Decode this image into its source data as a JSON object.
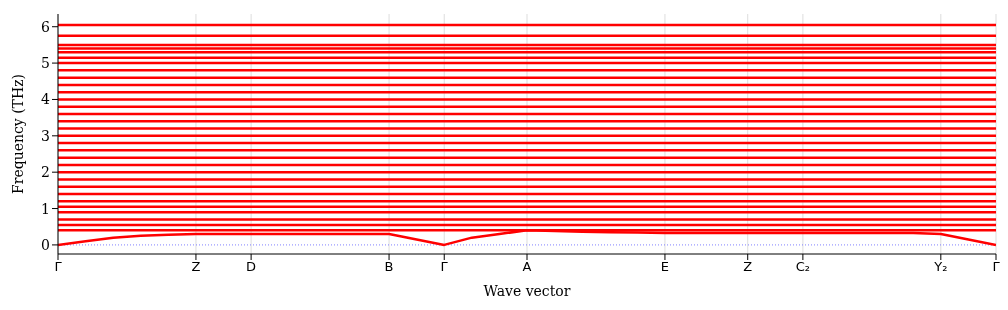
{
  "chart_data": {
    "type": "line",
    "xlabel": "Wave vector",
    "ylabel": "Frequency (THz)",
    "categories": [
      "Γ",
      null,
      null,
      null,
      null,
      "Z",
      null,
      "D",
      null,
      null,
      null,
      null,
      "B",
      null,
      "Γ",
      null,
      null,
      "A",
      null,
      null,
      null,
      null,
      "E",
      null,
      null,
      "Z",
      null,
      "C₂",
      null,
      null,
      null,
      null,
      "Y₂",
      null,
      "Γ"
    ],
    "ylim": [
      -0.25,
      6.35
    ],
    "yticks": [
      0,
      1,
      2,
      3,
      4,
      5,
      6
    ],
    "grid": "x",
    "marker": "none",
    "line_style": "solid",
    "legend": false,
    "ref_lines": [
      {
        "axis": "y",
        "value": 0,
        "color": "#8080ff",
        "line_style": "dotted"
      }
    ],
    "series": [
      {
        "color": "#ff0000",
        "values": [
          0,
          0.1,
          0.2,
          0.25,
          0.28,
          0.3,
          0.3,
          0.3,
          0.3,
          0.3,
          0.3,
          0.3,
          0.3,
          0.15,
          0,
          0.2,
          0.3,
          0.4,
          0.38,
          0.36,
          0.35,
          0.34,
          0.33,
          0.33,
          0.33,
          0.33,
          0.33,
          0.33,
          0.33,
          0.33,
          0.33,
          0.33,
          0.3,
          0.15,
          0
        ]
      },
      {
        "color": "#ff0000",
        "values": [
          0.4,
          0.4,
          0.4,
          0.4,
          0.4,
          0.4,
          0.4,
          0.4,
          0.4,
          0.4,
          0.4,
          0.4,
          0.4,
          0.4,
          0.4,
          0.4,
          0.4,
          0.4,
          0.4,
          0.4,
          0.4,
          0.4,
          0.4,
          0.4,
          0.4,
          0.4,
          0.4,
          0.4,
          0.4,
          0.4,
          0.4,
          0.4,
          0.4,
          0.4,
          0.4
        ]
      },
      {
        "color": "#ff0000",
        "values": [
          0.55,
          0.55,
          0.55,
          0.55,
          0.55,
          0.55,
          0.55,
          0.55,
          0.55,
          0.55,
          0.55,
          0.55,
          0.55,
          0.55,
          0.55,
          0.55,
          0.55,
          0.55,
          0.55,
          0.55,
          0.55,
          0.55,
          0.55,
          0.55,
          0.55,
          0.55,
          0.55,
          0.55,
          0.55,
          0.55,
          0.55,
          0.55,
          0.55,
          0.55,
          0.55
        ]
      },
      {
        "color": "#ff0000",
        "values": [
          0.7,
          0.7,
          0.7,
          0.7,
          0.7,
          0.7,
          0.7,
          0.7,
          0.7,
          0.7,
          0.7,
          0.7,
          0.7,
          0.7,
          0.7,
          0.7,
          0.7,
          0.7,
          0.7,
          0.7,
          0.7,
          0.7,
          0.7,
          0.7,
          0.7,
          0.7,
          0.7,
          0.7,
          0.7,
          0.7,
          0.7,
          0.7,
          0.7,
          0.7,
          0.7
        ]
      },
      {
        "color": "#ff0000",
        "values": [
          0.9,
          0.9,
          0.9,
          0.9,
          0.9,
          0.9,
          0.9,
          0.9,
          0.9,
          0.9,
          0.9,
          0.9,
          0.9,
          0.9,
          0.9,
          0.9,
          0.9,
          0.9,
          0.9,
          0.9,
          0.9,
          0.9,
          0.9,
          0.9,
          0.9,
          0.9,
          0.9,
          0.9,
          0.9,
          0.9,
          0.9,
          0.9,
          0.9,
          0.9,
          0.9
        ]
      },
      {
        "color": "#ff0000",
        "values": [
          1.05,
          1.05,
          1.05,
          1.05,
          1.05,
          1.05,
          1.05,
          1.05,
          1.05,
          1.05,
          1.05,
          1.05,
          1.05,
          1.05,
          1.05,
          1.05,
          1.05,
          1.05,
          1.05,
          1.05,
          1.05,
          1.05,
          1.05,
          1.05,
          1.05,
          1.05,
          1.05,
          1.05,
          1.05,
          1.05,
          1.05,
          1.05,
          1.05,
          1.05,
          1.05
        ]
      },
      {
        "color": "#ff0000",
        "values": [
          1.2,
          1.2,
          1.2,
          1.2,
          1.2,
          1.2,
          1.2,
          1.2,
          1.2,
          1.2,
          1.2,
          1.2,
          1.2,
          1.2,
          1.2,
          1.2,
          1.2,
          1.2,
          1.2,
          1.2,
          1.2,
          1.2,
          1.2,
          1.2,
          1.2,
          1.2,
          1.2,
          1.2,
          1.2,
          1.2,
          1.2,
          1.2,
          1.2,
          1.2,
          1.2
        ]
      },
      {
        "color": "#ff0000",
        "values": [
          1.4,
          1.4,
          1.4,
          1.4,
          1.4,
          1.4,
          1.4,
          1.4,
          1.4,
          1.4,
          1.4,
          1.4,
          1.4,
          1.4,
          1.4,
          1.4,
          1.4,
          1.4,
          1.4,
          1.4,
          1.4,
          1.4,
          1.4,
          1.4,
          1.4,
          1.4,
          1.4,
          1.4,
          1.4,
          1.4,
          1.4,
          1.4,
          1.4,
          1.4,
          1.4
        ]
      },
      {
        "color": "#ff0000",
        "values": [
          1.6,
          1.6,
          1.6,
          1.6,
          1.6,
          1.6,
          1.6,
          1.6,
          1.6,
          1.6,
          1.6,
          1.6,
          1.6,
          1.6,
          1.6,
          1.6,
          1.6,
          1.6,
          1.6,
          1.6,
          1.6,
          1.6,
          1.6,
          1.6,
          1.6,
          1.6,
          1.6,
          1.6,
          1.6,
          1.6,
          1.6,
          1.6,
          1.6,
          1.6,
          1.6
        ]
      },
      {
        "color": "#ff0000",
        "values": [
          1.8,
          1.8,
          1.8,
          1.8,
          1.8,
          1.8,
          1.8,
          1.8,
          1.8,
          1.8,
          1.8,
          1.8,
          1.8,
          1.8,
          1.8,
          1.8,
          1.8,
          1.8,
          1.8,
          1.8,
          1.8,
          1.8,
          1.8,
          1.8,
          1.8,
          1.8,
          1.8,
          1.8,
          1.8,
          1.8,
          1.8,
          1.8,
          1.8,
          1.8,
          1.8
        ]
      },
      {
        "color": "#ff0000",
        "values": [
          2,
          2,
          2,
          2,
          2,
          2,
          2,
          2,
          2,
          2,
          2,
          2,
          2,
          2,
          2,
          2,
          2,
          2,
          2,
          2,
          2,
          2,
          2,
          2,
          2,
          2,
          2,
          2,
          2,
          2,
          2,
          2,
          2,
          2,
          2
        ]
      },
      {
        "color": "#ff0000",
        "values": [
          2.2,
          2.2,
          2.2,
          2.2,
          2.2,
          2.2,
          2.2,
          2.2,
          2.2,
          2.2,
          2.2,
          2.2,
          2.2,
          2.2,
          2.2,
          2.2,
          2.2,
          2.2,
          2.2,
          2.2,
          2.2,
          2.2,
          2.2,
          2.2,
          2.2,
          2.2,
          2.2,
          2.2,
          2.2,
          2.2,
          2.2,
          2.2,
          2.2,
          2.2,
          2.2
        ]
      },
      {
        "color": "#ff0000",
        "values": [
          2.4,
          2.4,
          2.4,
          2.4,
          2.4,
          2.4,
          2.4,
          2.4,
          2.4,
          2.4,
          2.4,
          2.4,
          2.4,
          2.4,
          2.4,
          2.4,
          2.4,
          2.4,
          2.4,
          2.4,
          2.4,
          2.4,
          2.4,
          2.4,
          2.4,
          2.4,
          2.4,
          2.4,
          2.4,
          2.4,
          2.4,
          2.4,
          2.4,
          2.4,
          2.4
        ]
      },
      {
        "color": "#ff0000",
        "values": [
          2.6,
          2.6,
          2.6,
          2.6,
          2.6,
          2.6,
          2.6,
          2.6,
          2.6,
          2.6,
          2.6,
          2.6,
          2.6,
          2.6,
          2.6,
          2.6,
          2.6,
          2.6,
          2.6,
          2.6,
          2.6,
          2.6,
          2.6,
          2.6,
          2.6,
          2.6,
          2.6,
          2.6,
          2.6,
          2.6,
          2.6,
          2.6,
          2.6,
          2.6,
          2.6
        ]
      },
      {
        "color": "#ff0000",
        "values": [
          2.8,
          2.8,
          2.8,
          2.8,
          2.8,
          2.8,
          2.8,
          2.8,
          2.8,
          2.8,
          2.8,
          2.8,
          2.8,
          2.8,
          2.8,
          2.8,
          2.8,
          2.8,
          2.8,
          2.8,
          2.8,
          2.8,
          2.8,
          2.8,
          2.8,
          2.8,
          2.8,
          2.8,
          2.8,
          2.8,
          2.8,
          2.8,
          2.8,
          2.8,
          2.8
        ]
      },
      {
        "color": "#ff0000",
        "values": [
          3,
          3,
          3,
          3,
          3,
          3,
          3,
          3,
          3,
          3,
          3,
          3,
          3,
          3,
          3,
          3,
          3,
          3,
          3,
          3,
          3,
          3,
          3,
          3,
          3,
          3,
          3,
          3,
          3,
          3,
          3,
          3,
          3,
          3,
          3
        ]
      },
      {
        "color": "#ff0000",
        "values": [
          3.2,
          3.2,
          3.2,
          3.2,
          3.2,
          3.2,
          3.2,
          3.2,
          3.2,
          3.2,
          3.2,
          3.2,
          3.2,
          3.2,
          3.2,
          3.2,
          3.2,
          3.2,
          3.2,
          3.2,
          3.2,
          3.2,
          3.2,
          3.2,
          3.2,
          3.2,
          3.2,
          3.2,
          3.2,
          3.2,
          3.2,
          3.2,
          3.2,
          3.2,
          3.2
        ]
      },
      {
        "color": "#ff0000",
        "values": [
          3.4,
          3.4,
          3.4,
          3.4,
          3.4,
          3.4,
          3.4,
          3.4,
          3.4,
          3.4,
          3.4,
          3.4,
          3.4,
          3.4,
          3.4,
          3.4,
          3.4,
          3.4,
          3.4,
          3.4,
          3.4,
          3.4,
          3.4,
          3.4,
          3.4,
          3.4,
          3.4,
          3.4,
          3.4,
          3.4,
          3.4,
          3.4,
          3.4,
          3.4,
          3.4
        ]
      },
      {
        "color": "#ff0000",
        "values": [
          3.6,
          3.6,
          3.6,
          3.6,
          3.6,
          3.6,
          3.6,
          3.6,
          3.6,
          3.6,
          3.6,
          3.6,
          3.6,
          3.6,
          3.6,
          3.6,
          3.6,
          3.6,
          3.6,
          3.6,
          3.6,
          3.6,
          3.6,
          3.6,
          3.6,
          3.6,
          3.6,
          3.6,
          3.6,
          3.6,
          3.6,
          3.6,
          3.6,
          3.6,
          3.6
        ]
      },
      {
        "color": "#ff0000",
        "values": [
          3.8,
          3.8,
          3.8,
          3.8,
          3.8,
          3.8,
          3.8,
          3.8,
          3.8,
          3.8,
          3.8,
          3.8,
          3.8,
          3.8,
          3.8,
          3.8,
          3.8,
          3.8,
          3.8,
          3.8,
          3.8,
          3.8,
          3.8,
          3.8,
          3.8,
          3.8,
          3.8,
          3.8,
          3.8,
          3.8,
          3.8,
          3.8,
          3.8,
          3.8,
          3.8
        ]
      },
      {
        "color": "#ff0000",
        "values": [
          4,
          4,
          4,
          4,
          4,
          4,
          4,
          4,
          4,
          4,
          4,
          4,
          4,
          4,
          4,
          4,
          4,
          4,
          4,
          4,
          4,
          4,
          4,
          4,
          4,
          4,
          4,
          4,
          4,
          4,
          4,
          4,
          4,
          4,
          4
        ]
      },
      {
        "color": "#ff0000",
        "values": [
          4.2,
          4.2,
          4.2,
          4.2,
          4.2,
          4.2,
          4.2,
          4.2,
          4.2,
          4.2,
          4.2,
          4.2,
          4.2,
          4.2,
          4.2,
          4.2,
          4.2,
          4.2,
          4.2,
          4.2,
          4.2,
          4.2,
          4.2,
          4.2,
          4.2,
          4.2,
          4.2,
          4.2,
          4.2,
          4.2,
          4.2,
          4.2,
          4.2,
          4.2,
          4.2
        ]
      },
      {
        "color": "#ff0000",
        "values": [
          4.4,
          4.4,
          4.4,
          4.4,
          4.4,
          4.4,
          4.4,
          4.4,
          4.4,
          4.4,
          4.4,
          4.4,
          4.4,
          4.4,
          4.4,
          4.4,
          4.4,
          4.4,
          4.4,
          4.4,
          4.4,
          4.4,
          4.4,
          4.4,
          4.4,
          4.4,
          4.4,
          4.4,
          4.4,
          4.4,
          4.4,
          4.4,
          4.4,
          4.4,
          4.4
        ]
      },
      {
        "color": "#ff0000",
        "values": [
          4.6,
          4.6,
          4.6,
          4.6,
          4.6,
          4.6,
          4.6,
          4.6,
          4.6,
          4.6,
          4.6,
          4.6,
          4.6,
          4.6,
          4.6,
          4.6,
          4.6,
          4.6,
          4.6,
          4.6,
          4.6,
          4.6,
          4.6,
          4.6,
          4.6,
          4.6,
          4.6,
          4.6,
          4.6,
          4.6,
          4.6,
          4.6,
          4.6,
          4.6,
          4.6
        ]
      },
      {
        "color": "#ff0000",
        "values": [
          4.8,
          4.8,
          4.8,
          4.8,
          4.8,
          4.8,
          4.8,
          4.8,
          4.8,
          4.8,
          4.8,
          4.8,
          4.8,
          4.8,
          4.8,
          4.8,
          4.8,
          4.8,
          4.8,
          4.8,
          4.8,
          4.8,
          4.8,
          4.8,
          4.8,
          4.8,
          4.8,
          4.8,
          4.8,
          4.8,
          4.8,
          4.8,
          4.8,
          4.8,
          4.8
        ]
      },
      {
        "color": "#ff0000",
        "values": [
          5,
          5,
          5,
          5,
          5,
          5,
          5,
          5,
          5,
          5,
          5,
          5,
          5,
          5,
          5,
          5,
          5,
          5,
          5,
          5,
          5,
          5,
          5,
          5,
          5,
          5,
          5,
          5,
          5,
          5,
          5,
          5,
          5,
          5,
          5
        ]
      },
      {
        "color": "#ff0000",
        "values": [
          5.15,
          5.15,
          5.15,
          5.15,
          5.15,
          5.15,
          5.15,
          5.15,
          5.15,
          5.15,
          5.15,
          5.15,
          5.15,
          5.15,
          5.15,
          5.15,
          5.15,
          5.15,
          5.15,
          5.15,
          5.15,
          5.15,
          5.15,
          5.15,
          5.15,
          5.15,
          5.15,
          5.15,
          5.15,
          5.15,
          5.15,
          5.15,
          5.15,
          5.15,
          5.15
        ]
      },
      {
        "color": "#ff0000",
        "values": [
          5.3,
          5.3,
          5.3,
          5.3,
          5.3,
          5.3,
          5.3,
          5.3,
          5.3,
          5.3,
          5.3,
          5.3,
          5.3,
          5.3,
          5.3,
          5.3,
          5.3,
          5.3,
          5.3,
          5.3,
          5.3,
          5.3,
          5.3,
          5.3,
          5.3,
          5.3,
          5.3,
          5.3,
          5.3,
          5.3,
          5.3,
          5.3,
          5.3,
          5.3,
          5.3
        ]
      },
      {
        "color": "#ff0000",
        "values": [
          5.4,
          5.4,
          5.4,
          5.4,
          5.4,
          5.4,
          5.4,
          5.4,
          5.4,
          5.4,
          5.4,
          5.4,
          5.4,
          5.4,
          5.4,
          5.4,
          5.4,
          5.4,
          5.4,
          5.4,
          5.4,
          5.4,
          5.4,
          5.4,
          5.4,
          5.4,
          5.4,
          5.4,
          5.4,
          5.4,
          5.4,
          5.4,
          5.4,
          5.4,
          5.4
        ]
      },
      {
        "color": "#ff0000",
        "values": [
          5.5,
          5.5,
          5.5,
          5.5,
          5.5,
          5.5,
          5.5,
          5.5,
          5.5,
          5.5,
          5.5,
          5.5,
          5.5,
          5.5,
          5.5,
          5.5,
          5.5,
          5.5,
          5.5,
          5.5,
          5.5,
          5.5,
          5.5,
          5.5,
          5.5,
          5.5,
          5.5,
          5.5,
          5.5,
          5.5,
          5.5,
          5.5,
          5.5,
          5.5,
          5.5
        ]
      },
      {
        "color": "#ff0000",
        "values": [
          5.75,
          5.75,
          5.75,
          5.75,
          5.75,
          5.75,
          5.75,
          5.75,
          5.75,
          5.75,
          5.75,
          5.75,
          5.75,
          5.75,
          5.75,
          5.75,
          5.75,
          5.75,
          5.75,
          5.75,
          5.75,
          5.75,
          5.75,
          5.75,
          5.75,
          5.75,
          5.75,
          5.75,
          5.75,
          5.75,
          5.75,
          5.75,
          5.75,
          5.75,
          5.75
        ]
      },
      {
        "color": "#ff0000",
        "values": [
          6.05,
          6.05,
          6.05,
          6.05,
          6.05,
          6.05,
          6.05,
          6.05,
          6.05,
          6.05,
          6.05,
          6.05,
          6.05,
          6.05,
          6.05,
          6.05,
          6.05,
          6.05,
          6.05,
          6.05,
          6.05,
          6.05,
          6.05,
          6.05,
          6.05,
          6.05,
          6.05,
          6.05,
          6.05,
          6.05,
          6.05,
          6.05,
          6.05,
          6.05,
          6.05
        ]
      }
    ]
  }
}
